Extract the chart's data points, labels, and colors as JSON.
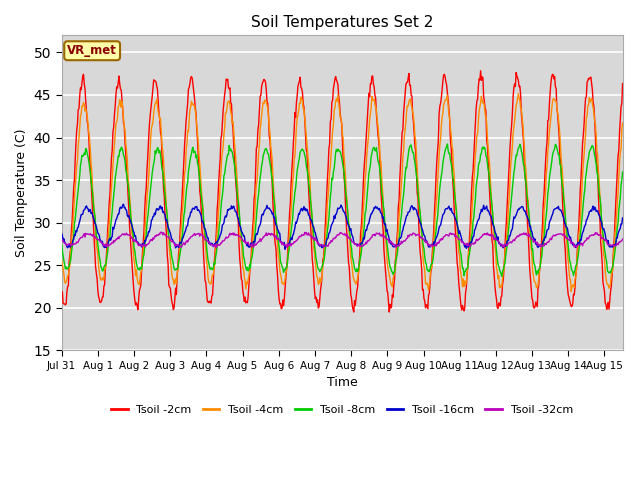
{
  "title": "Soil Temperatures Set 2",
  "xlabel": "Time",
  "ylabel": "Soil Temperature (C)",
  "ylim": [
    15,
    52
  ],
  "yticks": [
    15,
    20,
    25,
    30,
    35,
    40,
    45,
    50
  ],
  "background_color": "#d8d8d8",
  "plot_bg_color": "#d8d8d8",
  "fig_facecolor": "#ffffff",
  "annotation_text": "VR_met",
  "series_colors": [
    "#ff0000",
    "#ff8c00",
    "#00cc00",
    "#0000cc",
    "#bb00bb"
  ],
  "series_labels": [
    "Tsoil -2cm",
    "Tsoil -4cm",
    "Tsoil -8cm",
    "Tsoil -16cm",
    "Tsoil -32cm"
  ],
  "n_days": 15.5,
  "points_per_day": 48,
  "grid_color": "#ffffff",
  "xtick_labels": [
    "Jul 31",
    "Aug 1",
    "Aug 2",
    "Aug 3",
    "Aug 4",
    "Aug 5",
    "Aug 6",
    "Aug 7",
    "Aug 8",
    "Aug 9",
    "Aug 10",
    "Aug 11",
    "Aug 12",
    "Aug 13",
    "Aug 14",
    "Aug 15"
  ],
  "xtick_positions": [
    0,
    1,
    2,
    3,
    4,
    5,
    6,
    7,
    8,
    9,
    10,
    11,
    12,
    13,
    14,
    15
  ]
}
